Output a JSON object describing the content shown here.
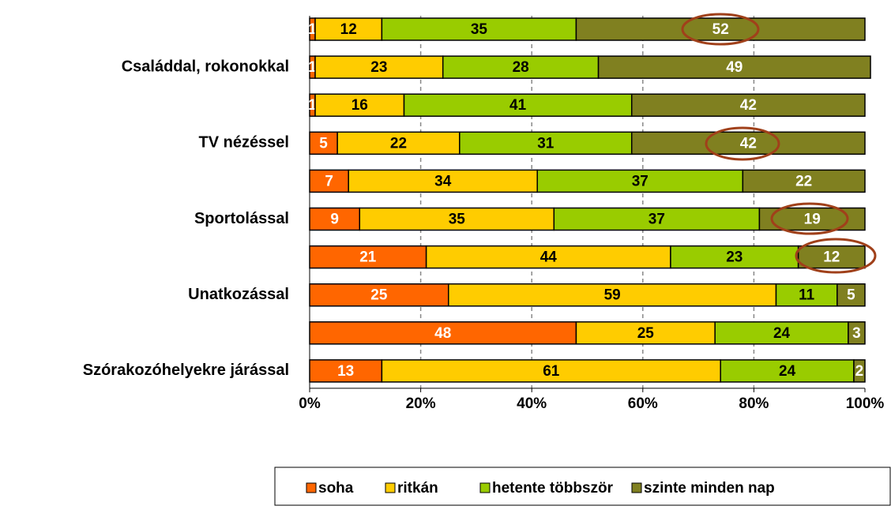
{
  "chart_data": {
    "type": "stacked_barh",
    "categories": [
      null,
      "Családdal, rokonokkal",
      null,
      "TV nézéssel",
      null,
      "Sportolással",
      null,
      "Unatkozással",
      null,
      "Szórakozóhelyekre járással"
    ],
    "series": [
      {
        "name": "soha",
        "color": "#ff6600",
        "values": [
          1,
          1,
          1,
          5,
          7,
          9,
          21,
          25,
          48,
          13
        ]
      },
      {
        "name": "ritkán",
        "color": "#ffcc00",
        "values": [
          12,
          23,
          16,
          22,
          34,
          35,
          44,
          59,
          25,
          61
        ]
      },
      {
        "name": "hetente többször",
        "color": "#99cc00",
        "values": [
          35,
          28,
          41,
          31,
          37,
          37,
          23,
          11,
          24,
          24
        ]
      },
      {
        "name": "szinte minden nap",
        "color": "#808020",
        "values": [
          52,
          49,
          42,
          42,
          22,
          19,
          12,
          5,
          3,
          2
        ]
      }
    ],
    "xlim": [
      0,
      100
    ],
    "xticks": [
      {
        "value": 0,
        "label": "0%"
      },
      {
        "value": 20,
        "label": "20%"
      },
      {
        "value": 40,
        "label": "40%"
      },
      {
        "value": 60,
        "label": "60%"
      },
      {
        "value": 80,
        "label": "80%"
      },
      {
        "value": 100,
        "label": "100%"
      }
    ],
    "grid": true,
    "legend": "bottom"
  }
}
